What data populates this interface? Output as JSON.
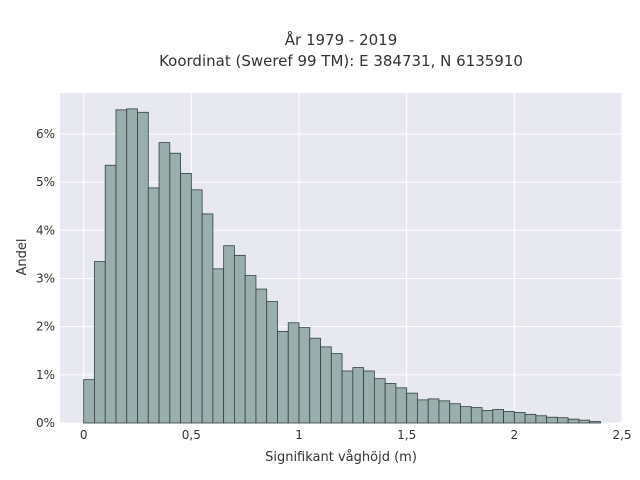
{
  "chart_data": {
    "type": "bar",
    "title": [
      "År 1979 - 2019",
      "Koordinat (Sweref 99 TM): E 384731, N 6135910"
    ],
    "xlabel": "Signifikant våghöjd (m)",
    "ylabel": "Andel",
    "xlim": [
      -0.11,
      2.5
    ],
    "ylim": [
      0,
      0.0685
    ],
    "grid": true,
    "x_ticks": [
      {
        "value": 0,
        "label": "0"
      },
      {
        "value": 0.5,
        "label": "0,5"
      },
      {
        "value": 1,
        "label": "1"
      },
      {
        "value": 1.5,
        "label": "1,5"
      },
      {
        "value": 2,
        "label": "2"
      },
      {
        "value": 2.5,
        "label": "2,5"
      }
    ],
    "y_ticks": [
      {
        "value": 0,
        "label": "0%"
      },
      {
        "value": 0.01,
        "label": "1%"
      },
      {
        "value": 0.02,
        "label": "2%"
      },
      {
        "value": 0.03,
        "label": "3%"
      },
      {
        "value": 0.04,
        "label": "4%"
      },
      {
        "value": 0.05,
        "label": "5%"
      },
      {
        "value": 0.06,
        "label": "6%"
      }
    ],
    "bin_width": 0.05,
    "bin_start": 0,
    "values": [
      0.009,
      0.0335,
      0.0535,
      0.065,
      0.0652,
      0.0645,
      0.0488,
      0.0582,
      0.056,
      0.0518,
      0.0484,
      0.0434,
      0.032,
      0.0368,
      0.0348,
      0.0306,
      0.0278,
      0.0252,
      0.019,
      0.0208,
      0.0198,
      0.0176,
      0.0158,
      0.0144,
      0.0108,
      0.0115,
      0.0108,
      0.0092,
      0.0082,
      0.0073,
      0.0062,
      0.0048,
      0.005,
      0.0046,
      0.004,
      0.0034,
      0.0032,
      0.0026,
      0.0028,
      0.0024,
      0.0022,
      0.0018,
      0.0015,
      0.0012,
      0.0011,
      0.0008,
      0.0006,
      0.0003
    ],
    "colors": {
      "bar_fill": "#9aafad",
      "bar_edge": "#2f3f3e",
      "plot_bg": "#e8e8f0",
      "grid": "#ffffff",
      "text": "#333333"
    }
  }
}
